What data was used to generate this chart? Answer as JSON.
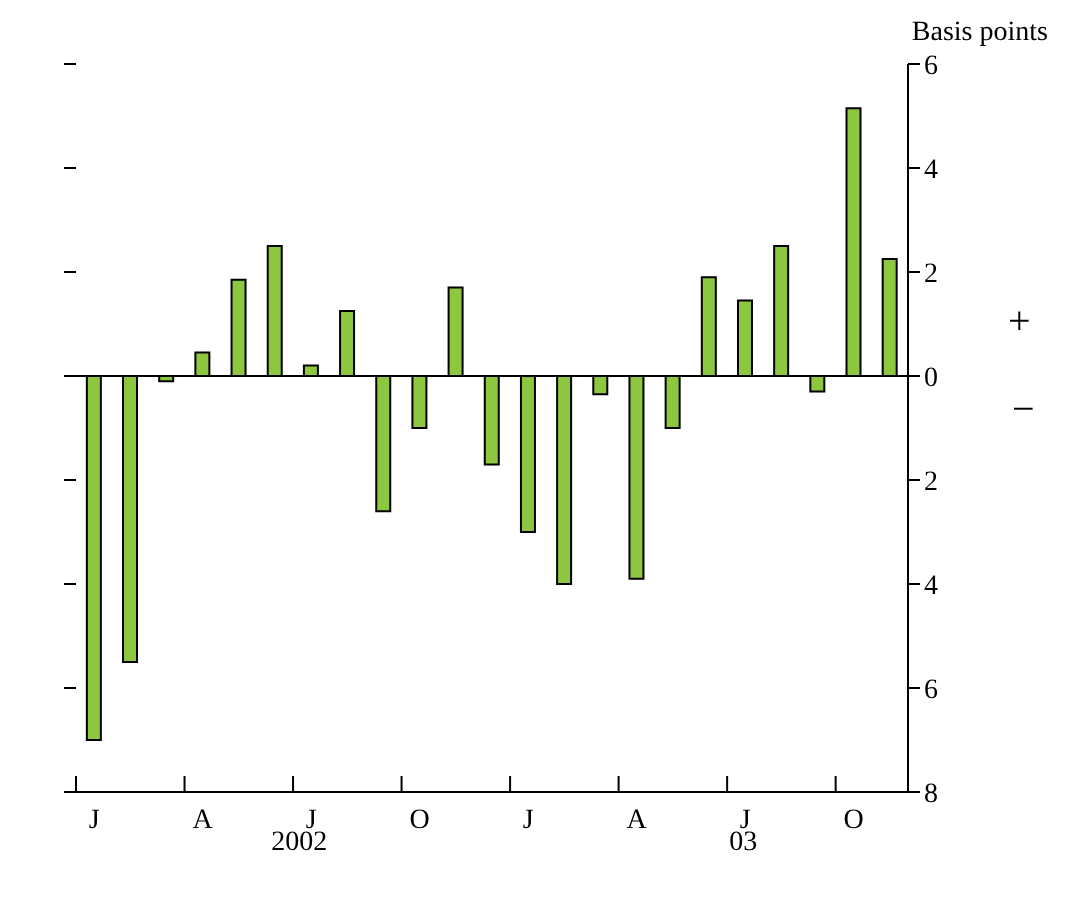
{
  "chart_data": {
    "type": "bar",
    "ylabel": "Basis points",
    "categories": [
      "J",
      null,
      null,
      "A",
      null,
      null,
      "J",
      null,
      null,
      "O",
      null,
      null,
      "J",
      null,
      null,
      "A",
      null,
      null,
      "J",
      null,
      null,
      "O",
      null
    ],
    "values": [
      -7.0,
      -5.5,
      -0.1,
      0.45,
      1.85,
      2.5,
      0.2,
      1.25,
      -2.6,
      -1.0,
      1.7,
      -1.7,
      -3.0,
      -4.0,
      -0.35,
      -3.9,
      -1.0,
      1.9,
      1.45,
      2.5,
      -0.3,
      5.15,
      2.25
    ],
    "color": "#8dc63f",
    "ylim": [
      -8,
      6
    ],
    "yticks": [
      {
        "value": -8,
        "label": "8"
      },
      {
        "value": -6,
        "label": "6"
      },
      {
        "value": -4,
        "label": "4"
      },
      {
        "value": -2,
        "label": "2"
      },
      0,
      2,
      4,
      6
    ],
    "ref_lines": [
      {
        "axis": "y",
        "value": 0
      }
    ],
    "annotations": [
      "+",
      "−",
      "2002",
      "03"
    ]
  }
}
